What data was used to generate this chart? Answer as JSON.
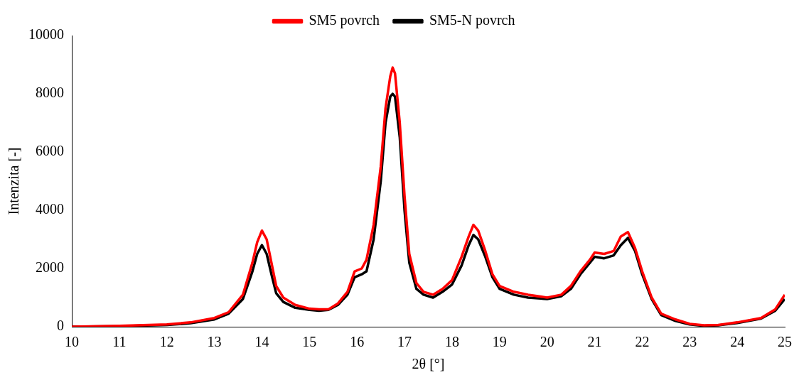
{
  "chart_data": {
    "type": "line",
    "xlabel": "2θ [°]",
    "ylabel": "Intenzita [-]",
    "xlim": [
      10,
      25
    ],
    "xticks": [
      10,
      11,
      12,
      13,
      14,
      15,
      16,
      17,
      18,
      19,
      20,
      21,
      22,
      23,
      24,
      25
    ],
    "ylim": [
      0,
      10000
    ],
    "yticks": [
      0,
      2000,
      4000,
      6000,
      8000,
      10000
    ],
    "grid": false,
    "legend": "top",
    "marker": "none",
    "line_style": "solid",
    "series": [
      {
        "name": "SM5 povrch",
        "color": "#ff0000",
        "x": [
          10,
          11,
          12,
          12.5,
          13,
          13.3,
          13.6,
          13.8,
          13.9,
          14,
          14.1,
          14.2,
          14.3,
          14.45,
          14.7,
          15,
          15.2,
          15.4,
          15.6,
          15.8,
          15.95,
          16.1,
          16.2,
          16.35,
          16.5,
          16.6,
          16.7,
          16.75,
          16.8,
          16.9,
          17,
          17.1,
          17.25,
          17.4,
          17.6,
          17.8,
          18,
          18.2,
          18.35,
          18.45,
          18.55,
          18.7,
          18.85,
          19,
          19.3,
          19.6,
          20,
          20.3,
          20.5,
          20.7,
          20.9,
          21,
          21.2,
          21.4,
          21.55,
          21.7,
          21.85,
          22,
          22.2,
          22.4,
          22.7,
          23,
          23.3,
          23.6,
          24,
          24.5,
          24.8,
          25
        ],
        "values": [
          0,
          30,
          80,
          150,
          300,
          500,
          1100,
          2200,
          2900,
          3300,
          3000,
          2200,
          1400,
          1000,
          750,
          620,
          600,
          600,
          800,
          1200,
          1900,
          2000,
          2300,
          3500,
          5500,
          7500,
          8600,
          8900,
          8700,
          7000,
          4500,
          2500,
          1500,
          1200,
          1100,
          1300,
          1600,
          2400,
          3100,
          3500,
          3300,
          2600,
          1800,
          1400,
          1200,
          1100,
          1000,
          1100,
          1400,
          1900,
          2300,
          2550,
          2500,
          2600,
          3100,
          3250,
          2700,
          1900,
          1000,
          450,
          250,
          100,
          50,
          60,
          150,
          300,
          600,
          1100
        ]
      },
      {
        "name": "SM5-N povrch",
        "color": "#000000",
        "x": [
          10,
          11,
          12,
          12.5,
          13,
          13.3,
          13.6,
          13.8,
          13.9,
          14,
          14.1,
          14.2,
          14.3,
          14.45,
          14.7,
          15,
          15.2,
          15.4,
          15.6,
          15.8,
          15.95,
          16.1,
          16.2,
          16.35,
          16.5,
          16.6,
          16.7,
          16.75,
          16.8,
          16.9,
          17,
          17.1,
          17.25,
          17.4,
          17.6,
          17.8,
          18,
          18.2,
          18.35,
          18.45,
          18.55,
          18.7,
          18.85,
          19,
          19.3,
          19.6,
          20,
          20.3,
          20.5,
          20.7,
          20.9,
          21,
          21.2,
          21.4,
          21.55,
          21.7,
          21.85,
          22,
          22.2,
          22.4,
          22.7,
          23,
          23.3,
          23.6,
          24,
          24.5,
          24.8,
          25
        ],
        "values": [
          0,
          20,
          60,
          120,
          250,
          450,
          950,
          1900,
          2500,
          2800,
          2500,
          1800,
          1150,
          850,
          650,
          580,
          550,
          580,
          750,
          1100,
          1700,
          1800,
          1900,
          3000,
          5000,
          7000,
          7900,
          8000,
          7900,
          6500,
          4000,
          2200,
          1300,
          1100,
          1000,
          1200,
          1450,
          2100,
          2800,
          3150,
          3000,
          2400,
          1700,
          1300,
          1100,
          1000,
          950,
          1050,
          1300,
          1800,
          2200,
          2400,
          2350,
          2450,
          2800,
          3050,
          2600,
          1800,
          950,
          400,
          200,
          80,
          30,
          50,
          130,
          280,
          550,
          950
        ]
      }
    ]
  }
}
